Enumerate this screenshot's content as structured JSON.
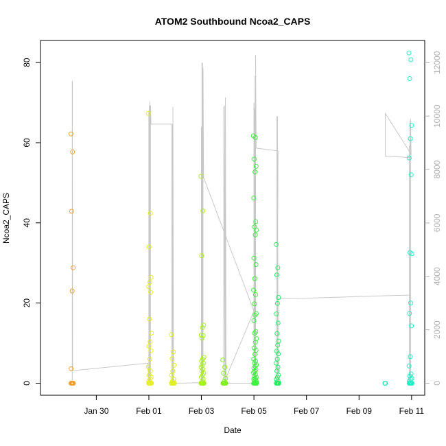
{
  "chart_data": {
    "type": "scatter",
    "title": "ATOM2 Southbound Ncoa2_CAPS",
    "xlabel": "Date",
    "ylabel": "Ncoa2_CAPS",
    "xlim": [
      "2023-01-27T21:00",
      "2023-02-11T12:00"
    ],
    "ylim": [
      -3,
      85.5
    ],
    "y2lim": [
      -450,
      12830
    ],
    "x_ticks": [
      {
        "date": "2023-01-30T00:00",
        "label": "Jan 30"
      },
      {
        "date": "2023-02-01T00:00",
        "label": "Feb 01"
      },
      {
        "date": "2023-02-03T00:00",
        "label": "Feb 03"
      },
      {
        "date": "2023-02-05T00:00",
        "label": "Feb 05"
      },
      {
        "date": "2023-02-07T00:00",
        "label": "Feb 07"
      },
      {
        "date": "2023-02-09T00:00",
        "label": "Feb 09"
      },
      {
        "date": "2023-02-11T00:00",
        "label": "Feb 11"
      }
    ],
    "y_ticks": [
      0,
      20,
      40,
      60,
      80
    ],
    "y2_ticks": [
      0,
      2000,
      4000,
      6000,
      8000,
      10000,
      12000
    ],
    "grid": false,
    "secondary_line_color": "#c8c8c8",
    "secondary_line": [
      [
        "2023-01-29T02:00",
        0
      ],
      [
        "2023-01-29T02:00",
        11300
      ],
      [
        "2023-01-29T02:10",
        11300
      ],
      [
        "2023-01-29T02:20",
        500
      ],
      [
        "2023-01-29T02:30",
        470
      ],
      [
        "2023-01-31T23:00",
        750
      ],
      [
        "2023-02-01T00:00",
        0
      ],
      [
        "2023-02-01T00:00",
        10200
      ],
      [
        "2023-02-01T00:30",
        0
      ],
      [
        "2023-02-01T00:30",
        10400
      ],
      [
        "2023-02-01T01:00",
        0
      ],
      [
        "2023-02-01T01:00",
        10550
      ],
      [
        "2023-02-01T01:30",
        0
      ],
      [
        "2023-02-01T01:30",
        10400
      ],
      [
        "2023-02-01T02:00",
        9700
      ],
      [
        "2023-02-01T21:00",
        9700
      ],
      [
        "2023-02-01T21:00",
        0
      ],
      [
        "2023-02-01T21:00",
        9600
      ],
      [
        "2023-02-01T21:30",
        0
      ],
      [
        "2023-02-01T21:30",
        9700
      ],
      [
        "2023-02-01T22:00",
        0
      ],
      [
        "2023-02-01T22:00",
        10350
      ],
      [
        "2023-02-01T22:30",
        0
      ],
      [
        "2023-02-02T23:30",
        20
      ],
      [
        "2023-02-03T00:00",
        0
      ],
      [
        "2023-02-03T00:00",
        9600
      ],
      [
        "2023-02-03T00:30",
        0
      ],
      [
        "2023-02-03T00:30",
        12000
      ],
      [
        "2023-02-03T01:00",
        0
      ],
      [
        "2023-02-03T01:00",
        12000
      ],
      [
        "2023-02-03T01:30",
        0
      ],
      [
        "2023-02-03T01:30",
        11800
      ],
      [
        "2023-02-03T02:00",
        7700
      ],
      [
        "2023-02-05T00:00",
        2700
      ],
      [
        "2023-02-03T20:30",
        0
      ],
      [
        "2023-02-03T20:30",
        10350
      ],
      [
        "2023-02-03T21:00",
        0
      ],
      [
        "2023-02-03T21:00",
        10400
      ],
      [
        "2023-02-03T22:00",
        0
      ],
      [
        "2023-02-03T22:00",
        10700
      ],
      [
        "2023-02-03T22:30",
        0
      ],
      [
        "2023-02-05T00:00",
        0
      ],
      [
        "2023-02-05T00:00",
        10500
      ],
      [
        "2023-02-05T00:30",
        0
      ],
      [
        "2023-02-05T00:30",
        10300
      ],
      [
        "2023-02-05T01:00",
        0
      ],
      [
        "2023-02-05T01:00",
        11500
      ],
      [
        "2023-02-05T01:30",
        0
      ],
      [
        "2023-02-05T01:30",
        12280
      ],
      [
        "2023-02-05T02:00",
        8800
      ],
      [
        "2023-02-05T22:00",
        8700
      ],
      [
        "2023-02-05T21:00",
        0
      ],
      [
        "2023-02-05T21:00",
        10000
      ],
      [
        "2023-02-05T21:30",
        0
      ],
      [
        "2023-02-05T21:30",
        10000
      ],
      [
        "2023-02-05T22:00",
        0
      ],
      [
        "2023-02-05T22:00",
        3150
      ],
      [
        "2023-02-10T22:00",
        3300
      ],
      [
        "2023-02-10T22:00",
        0
      ],
      [
        "2023-02-10T22:00",
        8900
      ],
      [
        "2023-02-10T22:30",
        0
      ],
      [
        "2023-02-10T22:30",
        9800
      ],
      [
        "2023-02-10T23:00",
        0
      ],
      [
        "2023-02-10T23:00",
        9900
      ],
      [
        "2023-02-10T23:30",
        8600
      ],
      [
        "2023-02-11T00:00",
        8550
      ],
      [
        "2023-02-10T00:00",
        10100
      ],
      [
        "2023-02-10T00:00",
        8500
      ],
      [
        "2023-02-10T22:00",
        8450
      ]
    ],
    "groups": [
      {
        "x": "2023-01-29T02:00",
        "color": "#f0a030",
        "jitter": 0.1,
        "values": [
          62.2,
          57.7,
          42.9,
          28.8,
          23.0,
          3.6,
          0,
          0,
          0,
          0,
          0,
          0,
          0,
          0
        ]
      },
      {
        "x": "2023-02-01T01:00",
        "color": "#e8f020",
        "jitter": 0.12,
        "values": [
          67.3,
          42.4,
          34.0,
          26.4,
          25.2,
          24.1,
          22.7,
          16.0,
          12.5,
          10.3,
          9.2,
          8.1,
          6.0,
          4.0,
          3.0,
          2.0,
          1.5,
          1.0,
          0.5,
          0,
          0,
          0,
          0,
          0,
          0,
          0,
          0,
          0,
          0
        ]
      },
      {
        "x": "2023-02-01T22:00",
        "color": "#e0f020",
        "jitter": 0.12,
        "values": [
          12.1,
          7.8,
          6.1,
          4.5,
          3.0,
          2.0,
          1.0,
          0.5,
          0,
          0,
          0,
          0,
          0,
          0,
          0,
          0,
          0
        ]
      },
      {
        "x": "2023-02-03T01:00",
        "color": "#a8f020",
        "jitter": 0.12,
        "values": [
          51.6,
          43.0,
          31.8,
          14.5,
          13.9,
          12.0,
          11.9,
          11.2,
          6.5,
          6.0,
          5.5,
          5.0,
          4.5,
          4.0,
          3.5,
          3.0,
          2.5,
          2.0,
          1.5,
          1.0,
          0.5,
          0,
          0,
          0,
          0,
          0,
          0,
          0,
          0,
          0,
          0,
          0,
          0,
          0,
          0,
          0
        ]
      },
      {
        "x": "2023-02-03T21:00",
        "color": "#80f020",
        "jitter": 0.12,
        "values": [
          5.8,
          4.0,
          2.5,
          1.2,
          0.5,
          0,
          0,
          0,
          0,
          0,
          0,
          0,
          0,
          0,
          0,
          0
        ]
      },
      {
        "x": "2023-02-05T01:00",
        "color": "#40f040",
        "jitter": 0.12,
        "values": [
          61.7,
          61.3,
          55.9,
          54.1,
          52.7,
          46.2,
          40.3,
          39.0,
          38.2,
          37.0,
          31.2,
          29.6,
          26.1,
          23.2,
          22.1,
          19.8,
          17.4,
          17.0,
          15.6,
          12.9,
          12.5,
          11.1,
          10.2,
          8.8,
          8.2,
          7.2,
          6.0,
          5.5,
          5.0,
          4.6,
          4.2,
          3.8,
          3.4,
          3.0,
          2.6,
          2.2,
          1.8,
          1.5,
          1.2,
          1.0,
          0.8,
          0.6,
          0.4,
          0.2,
          0,
          0,
          0,
          0,
          0,
          0,
          0,
          0,
          0,
          0,
          0,
          0,
          0,
          0,
          0,
          0
        ]
      },
      {
        "x": "2023-02-05T21:30",
        "color": "#20f060",
        "jitter": 0.1,
        "values": [
          34.6,
          28.8,
          27.0,
          21.4,
          19.9,
          17.3,
          15.0,
          12.4,
          10.5,
          9.5,
          8.0,
          7.3,
          6.0,
          5.0,
          4.0,
          3.0,
          2.0,
          1.5,
          1.0,
          0.5,
          0,
          0,
          0,
          0,
          0,
          0,
          0,
          0,
          0,
          0
        ]
      },
      {
        "x": "2023-02-10T00:00",
        "color": "#20e8c0",
        "jitter": 0.03,
        "values": [
          0,
          0,
          0
        ]
      },
      {
        "x": "2023-02-10T23:00",
        "color": "#20f0c8",
        "jitter": 0.12,
        "values": [
          82.4,
          80.7,
          76.0,
          64.3,
          61.0,
          56.2,
          52.0,
          32.6,
          32.3,
          20.0,
          17.4,
          14.3,
          6.6,
          4.3,
          2.3,
          1.8,
          1.2,
          1.0,
          0.5,
          0,
          0,
          0,
          0,
          0,
          0,
          0,
          0,
          0,
          0,
          0
        ]
      }
    ]
  }
}
